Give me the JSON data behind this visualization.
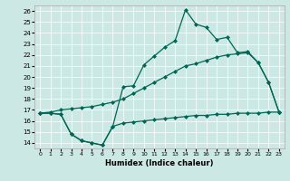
{
  "xlabel": "Humidex (Indice chaleur)",
  "bg_color": "#cce8e4",
  "line_color": "#006655",
  "xlim": [
    -0.5,
    23.5
  ],
  "ylim": [
    13.5,
    26.5
  ],
  "xticks": [
    0,
    1,
    2,
    3,
    4,
    5,
    6,
    7,
    8,
    9,
    10,
    11,
    12,
    13,
    14,
    15,
    16,
    17,
    18,
    19,
    20,
    21,
    22,
    23
  ],
  "yticks": [
    14,
    15,
    16,
    17,
    18,
    19,
    20,
    21,
    22,
    23,
    24,
    25,
    26
  ],
  "line1_x": [
    0,
    1,
    2,
    3,
    4,
    5,
    6,
    7,
    8,
    9,
    10,
    11,
    12,
    13,
    14,
    15,
    16,
    17,
    18,
    19,
    20,
    21,
    22,
    23
  ],
  "line1_y": [
    16.7,
    16.7,
    16.6,
    14.8,
    14.2,
    14.0,
    13.8,
    15.5,
    19.1,
    19.2,
    21.1,
    21.9,
    22.7,
    23.3,
    26.1,
    24.8,
    24.5,
    23.4,
    23.6,
    22.2,
    22.3,
    21.3,
    19.5,
    16.8
  ],
  "line2_x": [
    0,
    1,
    2,
    3,
    4,
    5,
    6,
    7,
    8,
    9,
    10,
    11,
    12,
    13,
    14,
    15,
    16,
    17,
    18,
    19,
    20,
    21,
    22,
    23
  ],
  "line2_y": [
    16.7,
    16.8,
    17.0,
    17.1,
    17.2,
    17.3,
    17.5,
    17.7,
    18.0,
    18.5,
    19.0,
    19.5,
    20.0,
    20.5,
    21.0,
    21.2,
    21.5,
    21.8,
    22.0,
    22.1,
    22.2,
    21.3,
    19.5,
    16.8
  ],
  "line3_x": [
    0,
    1,
    2,
    3,
    4,
    5,
    6,
    7,
    8,
    9,
    10,
    11,
    12,
    13,
    14,
    15,
    16,
    17,
    18,
    19,
    20,
    21,
    22,
    23
  ],
  "line3_y": [
    16.7,
    16.7,
    16.6,
    14.8,
    14.2,
    14.0,
    13.8,
    15.5,
    15.8,
    15.9,
    16.0,
    16.1,
    16.2,
    16.3,
    16.4,
    16.5,
    16.5,
    16.6,
    16.6,
    16.7,
    16.7,
    16.7,
    16.8,
    16.8
  ],
  "marker": "D",
  "markersize": 2.0,
  "linewidth": 0.9
}
